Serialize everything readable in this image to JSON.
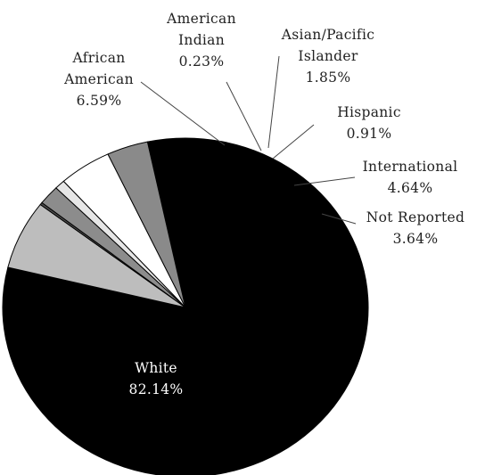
{
  "chart_data": {
    "type": "pie",
    "slices": [
      {
        "label_lines": [
          "White",
          "82.14%"
        ],
        "value": 82.14,
        "color": "#000000"
      },
      {
        "label_lines": [
          "African",
          "American",
          "6.59%"
        ],
        "value": 6.59,
        "color": "#bdbdbd"
      },
      {
        "label_lines": [
          "American",
          "Indian",
          "0.23%"
        ],
        "value": 0.23,
        "color": "#4a4a4a"
      },
      {
        "label_lines": [
          "Asian/Pacific",
          "Islander",
          "1.85%"
        ],
        "value": 1.85,
        "color": "#8c8c8c"
      },
      {
        "label_lines": [
          "Hispanic",
          "0.91%"
        ],
        "value": 0.91,
        "color": "#e6e6e6"
      },
      {
        "label_lines": [
          "International",
          "4.64%"
        ],
        "value": 4.64,
        "color": "#ffffff"
      },
      {
        "label_lines": [
          "Not Reported",
          "3.64%"
        ],
        "value": 3.64,
        "color": "#8a8a8a"
      }
    ]
  }
}
